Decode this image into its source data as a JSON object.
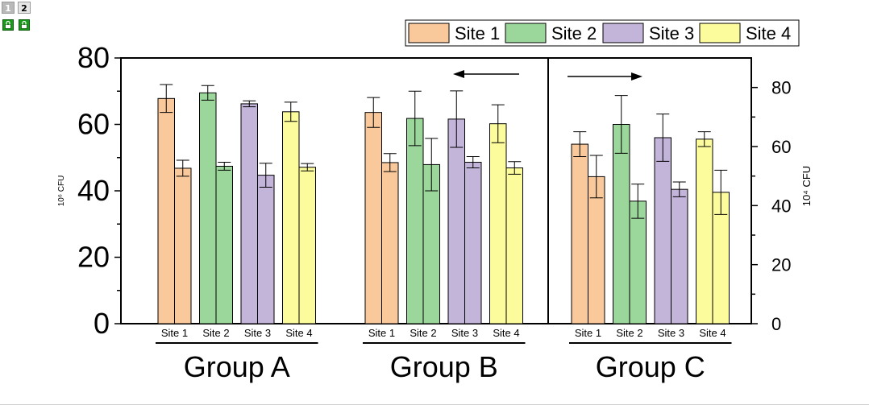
{
  "page_tabs": [
    "1",
    "2"
  ],
  "chart_data": {
    "type": "bar",
    "title": "",
    "legend": {
      "placement": "top-right",
      "entries": [
        "Site 1",
        "Site 2",
        "Site 3",
        "Site 4"
      ]
    },
    "colors": {
      "Site 1": "#f9c89b",
      "Site 2": "#9bd69b",
      "Site 3": "#c3b4d9",
      "Site 4": "#fcfc9d"
    },
    "y_left": {
      "label": "10⁶ CFU",
      "ylim": [
        0,
        80
      ],
      "ticks": [
        "0",
        "20",
        "40",
        "60",
        "80"
      ]
    },
    "y_right": {
      "label": "10⁴ CFU",
      "ylim": [
        0,
        90
      ],
      "ticks": [
        "0",
        "20",
        "40",
        "60",
        "80"
      ]
    },
    "groups": [
      {
        "name": "Group A",
        "axis": "left",
        "sites": [
          {
            "label": "Site 1",
            "bars": [
              {
                "value": 67.8,
                "err": 4.2
              },
              {
                "value": 46.8,
                "err": 2.4
              }
            ]
          },
          {
            "label": "Site 2",
            "bars": [
              {
                "value": 69.5,
                "err": 2.2
              },
              {
                "value": 47.4,
                "err": 1.2
              }
            ]
          },
          {
            "label": "Site 3",
            "bars": [
              {
                "value": 66.2,
                "err": 0.9
              },
              {
                "value": 44.7,
                "err": 3.6
              }
            ]
          },
          {
            "label": "Site 4",
            "bars": [
              {
                "value": 63.8,
                "err": 2.9
              },
              {
                "value": 47.1,
                "err": 1.1
              }
            ]
          }
        ]
      },
      {
        "name": "Group B",
        "axis": "left",
        "arrow": "left",
        "sites": [
          {
            "label": "Site 1",
            "bars": [
              {
                "value": 63.6,
                "err": 4.5
              },
              {
                "value": 48.5,
                "err": 2.7
              }
            ]
          },
          {
            "label": "Site 2",
            "bars": [
              {
                "value": 61.8,
                "err": 8.2
              },
              {
                "value": 47.9,
                "err": 7.9
              }
            ]
          },
          {
            "label": "Site 3",
            "bars": [
              {
                "value": 61.6,
                "err": 8.5
              },
              {
                "value": 48.6,
                "err": 1.7
              }
            ]
          },
          {
            "label": "Site 4",
            "bars": [
              {
                "value": 60.2,
                "err": 5.7
              },
              {
                "value": 46.9,
                "err": 1.9
              }
            ]
          }
        ]
      },
      {
        "name": "Group C",
        "axis": "right",
        "arrow": "right",
        "sites": [
          {
            "label": "Site 1",
            "bars": [
              {
                "value": 60.8,
                "err": 4.2
              },
              {
                "value": 49.8,
                "err": 7.2
              }
            ]
          },
          {
            "label": "Site 2",
            "bars": [
              {
                "value": 67.5,
                "err": 9.8
              },
              {
                "value": 41.5,
                "err": 5.8
              }
            ]
          },
          {
            "label": "Site 3",
            "bars": [
              {
                "value": 63.0,
                "err": 8.0
              },
              {
                "value": 45.5,
                "err": 2.5
              }
            ]
          },
          {
            "label": "Site 4",
            "bars": [
              {
                "value": 62.5,
                "err": 2.5
              },
              {
                "value": 44.5,
                "err": 7.5
              }
            ]
          }
        ]
      }
    ]
  }
}
